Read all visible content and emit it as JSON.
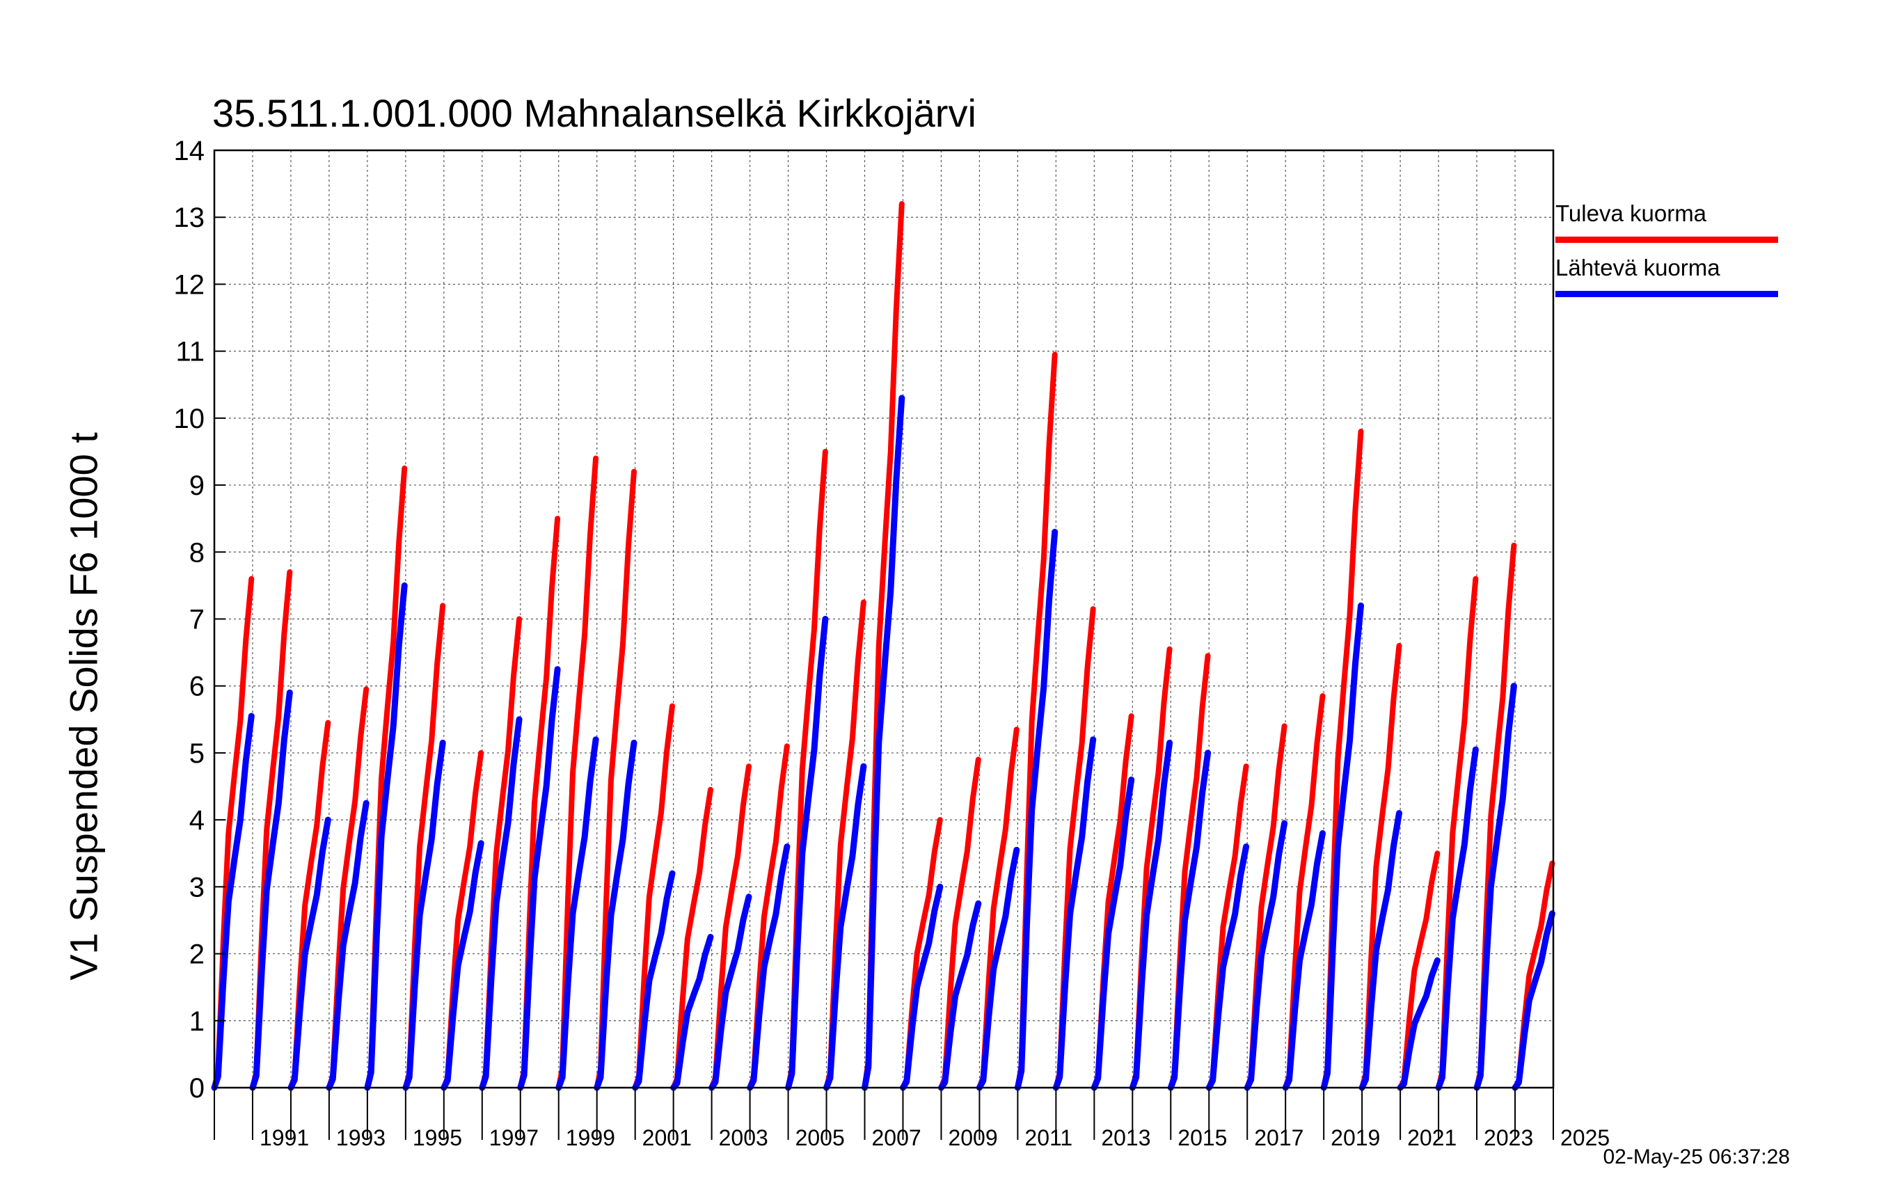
{
  "chart_data": {
    "type": "line",
    "title": "35.511.1.001.000 Mahnalanselkä Kirkkojärvi",
    "ylabel": "V1 Suspended Solids F6 1000 t",
    "xlabel": "",
    "ylim": [
      0,
      14
    ],
    "xlim": [
      1990,
      2025
    ],
    "yticks": [
      0,
      1,
      2,
      3,
      4,
      5,
      6,
      7,
      8,
      9,
      10,
      11,
      12,
      13,
      14
    ],
    "xtick_labels": [
      "1991",
      "1993",
      "1995",
      "1997",
      "1999",
      "2001",
      "2003",
      "2005",
      "2007",
      "2009",
      "2011",
      "2013",
      "2015",
      "2017",
      "2019",
      "2021",
      "2023",
      "2025"
    ],
    "grid": true,
    "legend_position": "right",
    "series": [
      {
        "name": "Tuleva kuorma",
        "color": "#ff0000",
        "annual_totals": [
          7.6,
          7.7,
          5.45,
          5.95,
          9.25,
          7.2,
          5.0,
          7.0,
          8.5,
          9.4,
          9.2,
          5.7,
          4.45,
          4.8,
          5.1,
          9.5,
          7.25,
          13.2,
          4.0,
          4.9,
          5.35,
          10.95,
          7.15,
          5.55,
          6.55,
          6.45,
          4.8,
          5.4,
          5.85,
          9.8,
          6.6,
          3.5,
          7.6,
          8.1,
          3.35
        ]
      },
      {
        "name": "Lähtevä kuorma",
        "color": "#0000ff",
        "annual_totals": [
          5.55,
          5.9,
          4.0,
          4.25,
          7.5,
          5.15,
          3.65,
          5.5,
          6.25,
          5.2,
          5.15,
          3.2,
          2.25,
          2.85,
          3.6,
          7.0,
          4.8,
          10.3,
          3.0,
          2.75,
          3.55,
          8.3,
          5.2,
          4.6,
          5.15,
          5.0,
          3.6,
          3.95,
          3.8,
          7.2,
          4.1,
          1.9,
          5.05,
          6.0,
          2.6
        ]
      }
    ],
    "timestamp": "02-May-25 06:37:28"
  }
}
